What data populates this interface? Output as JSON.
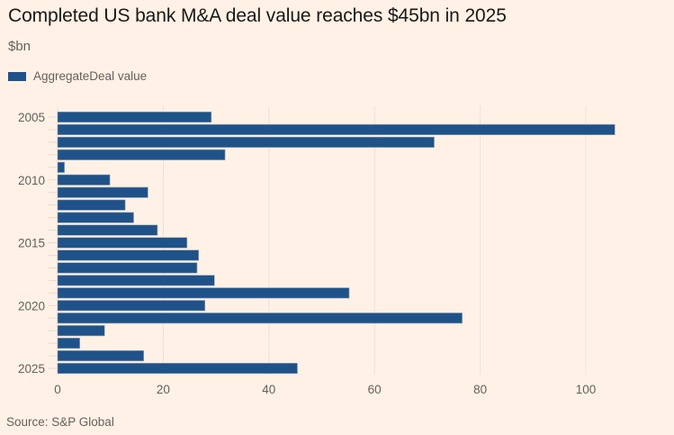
{
  "chart_data": {
    "type": "bar",
    "orientation": "horizontal",
    "title": "Completed US bank M&A deal value reaches $45bn in 2025",
    "subtitle": "$bn",
    "xlabel": "",
    "ylabel": "",
    "categories": [
      "2005",
      "2006",
      "2007",
      "2008",
      "2009",
      "2010",
      "2011",
      "2012",
      "2013",
      "2014",
      "2015",
      "2016",
      "2017",
      "2018",
      "2019",
      "2020",
      "2021",
      "2022",
      "2023",
      "2024",
      "2025"
    ],
    "y_tick_labels": [
      "2005",
      "2010",
      "2015",
      "2020",
      "2025"
    ],
    "series": [
      {
        "name": "AggregateDeal value",
        "color": "#1f5289",
        "values": [
          29.1,
          105.5,
          71.3,
          31.7,
          1.3,
          9.9,
          17.1,
          12.8,
          14.4,
          18.9,
          24.5,
          26.7,
          26.4,
          29.7,
          55.2,
          27.9,
          76.6,
          8.9,
          4.2,
          16.3,
          45.4
        ]
      }
    ],
    "xlim": [
      0,
      110
    ],
    "x_ticks": [
      0,
      20,
      40,
      60,
      80,
      100
    ],
    "grid": true,
    "legend": "top-left",
    "source": "Source: S&P Global"
  },
  "colors": {
    "background": "#fff1e5",
    "bar": "#1f5289",
    "grid": "#efe2d6",
    "text": "#66605c",
    "title": "#1a1817"
  }
}
